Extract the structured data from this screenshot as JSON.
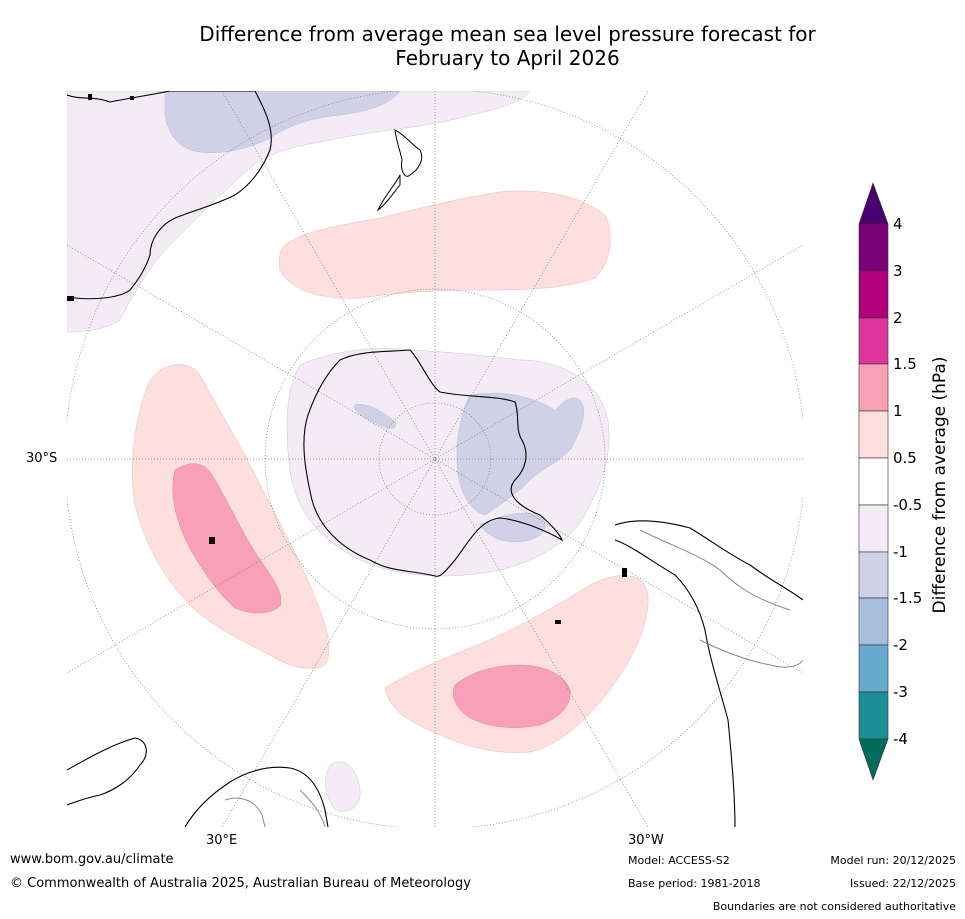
{
  "title": {
    "line1": "Difference from average mean sea level pressure forecast for",
    "line2": "February to April 2026"
  },
  "map": {
    "projection": "south polar stereographic",
    "latitude_label": "30°S",
    "longitude_labels": {
      "east": "30°E",
      "west": "30°W"
    },
    "ocean_color": "#ffffff",
    "land_outline_color": "#000000"
  },
  "legend": {
    "title": "Difference from average (hPa)",
    "tick_labels": [
      "4",
      "3",
      "2",
      "1.5",
      "1",
      "0.5",
      "-0.5",
      "-1",
      "-1.5",
      "-2",
      "-3",
      "-4"
    ],
    "colors": {
      "above_4": "#4a0070",
      "3_to_4": "#7a0077",
      "2_to_3": "#b0007a",
      "1.5_to_2": "#dd3599",
      "1_to_1.5": "#f7a0b8",
      "0.5_to_1": "#fde0dd",
      "-0.5_to_0.5": "#ffffff",
      "-1_to_-0.5": "#f3ecf5",
      "-1.5_to_-1": "#d0d1e6",
      "-2_to_-1.5": "#a6bddb",
      "-3_to_-2": "#67a9cf",
      "-4_to_-3": "#1c8f95",
      "below_-4": "#016c59"
    }
  },
  "footer": {
    "website": "www.bom.gov.au/climate",
    "copyright": "© Commonwealth of Australia 2025, Australian Bureau of Meteorology",
    "model": "Model: ACCESS-S2",
    "base_period": "Base period: 1981-2018",
    "model_run": "Model run: 20/12/2025",
    "issued": "Issued: 22/12/2025",
    "disclaimer": "Boundaries are not considered authoritative"
  }
}
